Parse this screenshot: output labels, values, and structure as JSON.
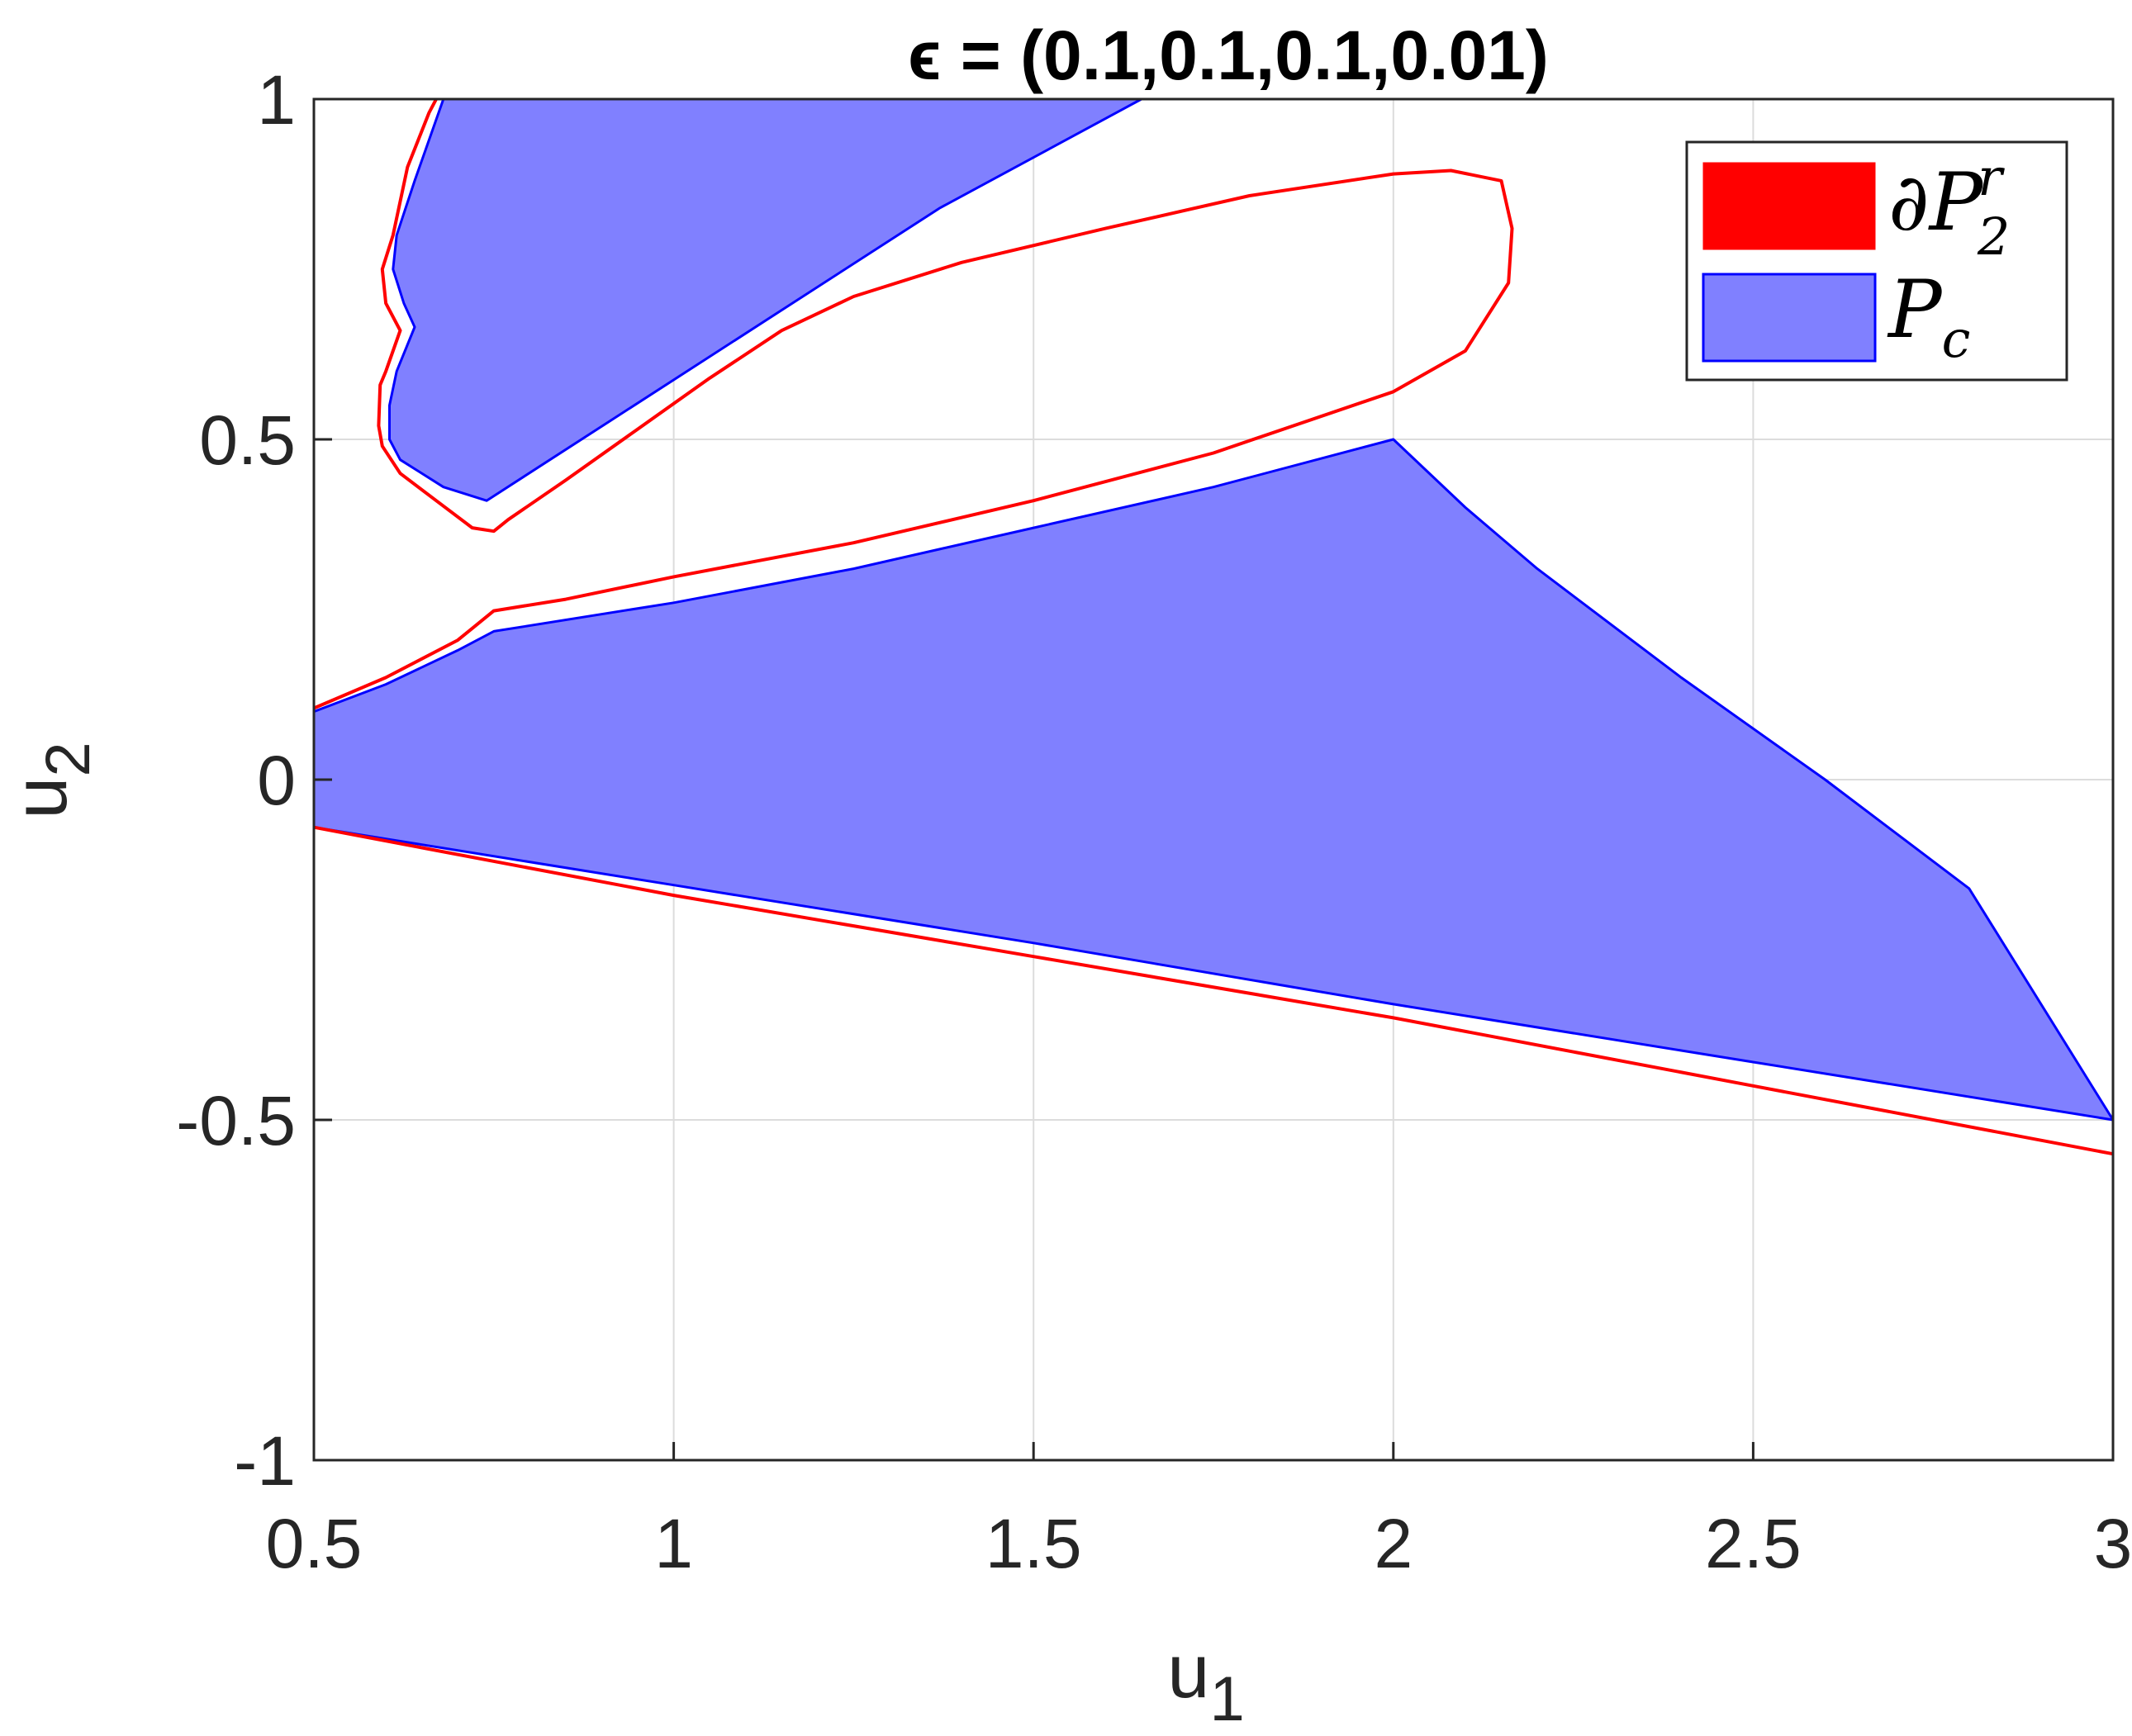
{
  "chart_data": {
    "type": "area",
    "title": "ϵ = (0.1,0.1,0.1,0.01)",
    "xlabel": "u",
    "xlabel_sub": "1",
    "ylabel": "u",
    "ylabel_sub": "2",
    "xlim": [
      0.5,
      3
    ],
    "ylim": [
      -1,
      1
    ],
    "grid": true,
    "legend_position": "top-right",
    "x_ticks": [
      0.5,
      1,
      1.5,
      2,
      2.5,
      3
    ],
    "x_tick_labels": [
      "0.5",
      "1",
      "1.5",
      "2",
      "2.5",
      "3"
    ],
    "y_ticks": [
      -1,
      -0.5,
      0,
      0.5,
      1
    ],
    "y_tick_labels": [
      "-1",
      "-0.5",
      "0",
      "0.5",
      "1"
    ],
    "colors": {
      "boundary": "#ff0000",
      "region_fill": "#8080ff",
      "region_edge": "#0000ff",
      "grid": "#dcdcdc",
      "axis": "#262626"
    },
    "series": [
      {
        "name": "∂P₂ʳ",
        "legend_base": "∂P",
        "legend_sub": "2",
        "legend_sup": "r",
        "kind": "boundary",
        "curves": [
          [
            [
              0.5,
              -0.07
            ],
            [
              1.0,
              -0.17
            ],
            [
              1.5,
              -0.26
            ],
            [
              2.0,
              -0.35
            ],
            [
              2.5,
              -0.45
            ],
            [
              3.0,
              -0.55
            ]
          ],
          [
            [
              0.5,
              0.105
            ],
            [
              0.6,
              0.15
            ],
            [
              0.7,
              0.205
            ],
            [
              0.75,
              0.248
            ],
            [
              0.85,
              0.265
            ],
            [
              1.0,
              0.298
            ],
            [
              1.25,
              0.348
            ],
            [
              1.5,
              0.41
            ],
            [
              1.75,
              0.48
            ],
            [
              2.0,
              0.57
            ],
            [
              2.1,
              0.63
            ],
            [
              2.16,
              0.73
            ],
            [
              2.165,
              0.81
            ],
            [
              2.15,
              0.88
            ],
            [
              2.08,
              0.895
            ],
            [
              2.0,
              0.89
            ],
            [
              1.8,
              0.858
            ],
            [
              1.6,
              0.81
            ],
            [
              1.4,
              0.76
            ],
            [
              1.25,
              0.71
            ],
            [
              1.15,
              0.66
            ],
            [
              1.05,
              0.59
            ],
            [
              0.95,
              0.515
            ],
            [
              0.85,
              0.44
            ],
            [
              0.77,
              0.382
            ],
            [
              0.75,
              0.365
            ],
            [
              0.72,
              0.37
            ],
            [
              0.67,
              0.41
            ],
            [
              0.62,
              0.45
            ],
            [
              0.595,
              0.49
            ],
            [
              0.59,
              0.52
            ],
            [
              0.592,
              0.58
            ],
            [
              0.6,
              0.6
            ],
            [
              0.62,
              0.66
            ],
            [
              0.6,
              0.7
            ],
            [
              0.595,
              0.75
            ],
            [
              0.61,
              0.8
            ],
            [
              0.63,
              0.9
            ],
            [
              0.66,
              0.98
            ],
            [
              0.67,
              1.0
            ]
          ]
        ]
      },
      {
        "name": "Pᶜ",
        "legend_base": "P",
        "legend_sub": "c",
        "legend_sup": "",
        "kind": "region",
        "polygons": [
          [
            [
              0.5,
              -0.07
            ],
            [
              0.5,
              0.1
            ],
            [
              0.6,
              0.14
            ],
            [
              0.7,
              0.19
            ],
            [
              0.75,
              0.218
            ],
            [
              1.0,
              0.26
            ],
            [
              1.25,
              0.31
            ],
            [
              1.5,
              0.37
            ],
            [
              1.75,
              0.43
            ],
            [
              2.0,
              0.5
            ],
            [
              2.1,
              0.4
            ],
            [
              2.2,
              0.31
            ],
            [
              2.4,
              0.15
            ],
            [
              2.6,
              0.0
            ],
            [
              2.8,
              -0.16
            ],
            [
              3.0,
              -0.5
            ],
            [
              2.5,
              -0.415
            ],
            [
              2.0,
              -0.33
            ],
            [
              1.5,
              -0.24
            ],
            [
              1.0,
              -0.155
            ],
            [
              0.5,
              -0.07
            ]
          ],
          [
            [
              0.68,
              1.0
            ],
            [
              1.65,
              1.0
            ],
            [
              1.37,
              0.84
            ],
            [
              0.74,
              0.41
            ],
            [
              0.68,
              0.43
            ],
            [
              0.62,
              0.47
            ],
            [
              0.605,
              0.5
            ],
            [
              0.605,
              0.55
            ],
            [
              0.615,
              0.6
            ],
            [
              0.64,
              0.665
            ],
            [
              0.625,
              0.7
            ],
            [
              0.61,
              0.75
            ],
            [
              0.615,
              0.8
            ],
            [
              0.64,
              0.88
            ],
            [
              0.68,
              1.0
            ]
          ]
        ]
      }
    ]
  }
}
